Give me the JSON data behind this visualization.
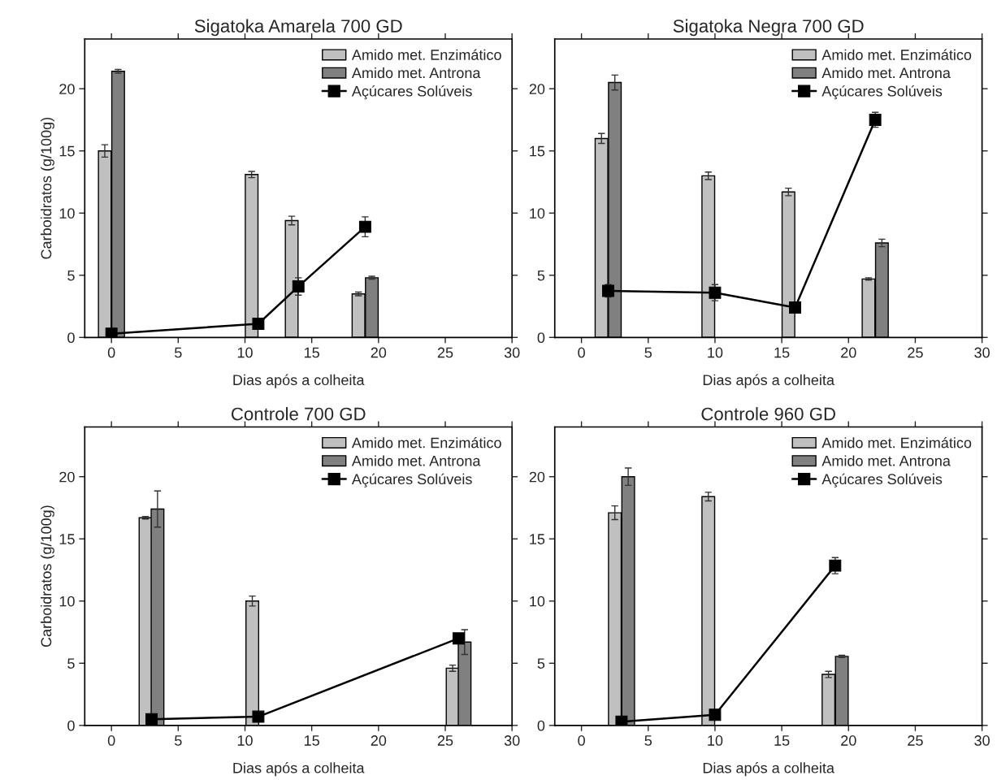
{
  "chart_data": [
    {
      "type": "bar",
      "title": "Sigatoka Amarela 700 GD",
      "xlabel": "Dias após a colheita",
      "ylabel": "Carboidratos (g/100g)",
      "xlim": [
        -2,
        30
      ],
      "ylim": [
        0,
        24
      ],
      "xticks": [
        0,
        5,
        10,
        15,
        20,
        25,
        30
      ],
      "yticks": [
        0,
        5,
        10,
        15,
        20
      ],
      "legend": "top right",
      "grid": false,
      "series": [
        {
          "name": "Amido met. Enzimático",
          "color": "#c0c0c0",
          "x": [
            -0.5,
            10.5,
            13.5,
            18.5
          ],
          "values": [
            15.0,
            13.1,
            9.4,
            3.5
          ],
          "errors": [
            0.5,
            0.25,
            0.35,
            0.15
          ]
        },
        {
          "name": "Amido met. Antrona",
          "color": "#808080",
          "x": [
            0.5,
            19.5
          ],
          "values": [
            21.4,
            4.8
          ],
          "errors": [
            0.15,
            0.12
          ]
        },
        {
          "name": "Açúcares Solúveis",
          "type": "line",
          "color": "#000000",
          "marker": "square",
          "x": [
            0,
            11,
            14,
            19
          ],
          "values": [
            0.3,
            1.1,
            4.1,
            8.9
          ],
          "errors": [
            null,
            null,
            0.7,
            0.8
          ]
        }
      ]
    },
    {
      "type": "bar",
      "title": "Sigatoka Negra 700 GD",
      "xlabel": "Dias após a colheita",
      "xlim": [
        -2,
        30
      ],
      "ylim": [
        0,
        24
      ],
      "xticks": [
        0,
        5,
        10,
        15,
        20,
        25,
        30
      ],
      "yticks": [
        0,
        5,
        10,
        15,
        20
      ],
      "legend": "top right",
      "grid": false,
      "series": [
        {
          "name": "Amido met. Enzimático",
          "color": "#c0c0c0",
          "x": [
            1.5,
            9.5,
            15.5,
            21.5
          ],
          "values": [
            16.0,
            13.0,
            11.7,
            4.7
          ],
          "errors": [
            0.4,
            0.3,
            0.3,
            0.1
          ]
        },
        {
          "name": "Amido met. Antrona",
          "color": "#808080",
          "x": [
            2.5,
            22.5
          ],
          "values": [
            20.5,
            7.6
          ],
          "errors": [
            0.6,
            0.3
          ]
        },
        {
          "name": "Açúcares Solúveis",
          "type": "line",
          "color": "#000000",
          "marker": "square",
          "x": [
            2,
            10,
            16,
            22
          ],
          "values": [
            3.75,
            3.6,
            2.4,
            17.5
          ],
          "errors": [
            0.5,
            0.65,
            null,
            0.6
          ]
        }
      ]
    },
    {
      "type": "bar",
      "title": "Controle 700 GD",
      "xlabel": "Dias após a colheita",
      "ylabel": "Carboidratos (g/100g)",
      "xlim": [
        -2,
        30
      ],
      "ylim": [
        0,
        24
      ],
      "xticks": [
        0,
        5,
        10,
        15,
        20,
        25,
        30
      ],
      "yticks": [
        0,
        5,
        10,
        15,
        20
      ],
      "legend": "top right",
      "grid": false,
      "series": [
        {
          "name": "Amido met. Enzimático",
          "color": "#c0c0c0",
          "x": [
            2.55,
            10.55,
            25.55
          ],
          "values": [
            16.7,
            10.0,
            4.6
          ],
          "errors": [
            0.1,
            0.4,
            0.25
          ]
        },
        {
          "name": "Amido met. Antrona",
          "color": "#808080",
          "x": [
            3.45,
            26.45
          ],
          "values": [
            17.4,
            6.7
          ],
          "errors": [
            1.45,
            1.0
          ]
        },
        {
          "name": "Açúcares Solúveis",
          "type": "line",
          "color": "#000000",
          "marker": "square",
          "x": [
            3,
            11,
            26
          ],
          "values": [
            0.5,
            0.7,
            7.0
          ],
          "errors": [
            null,
            null,
            0.35
          ]
        }
      ]
    },
    {
      "type": "bar",
      "title": "Controle 960 GD",
      "xlabel": "Dias após a colheita",
      "xlim": [
        -2,
        30
      ],
      "ylim": [
        0,
        24
      ],
      "xticks": [
        0,
        5,
        10,
        15,
        20,
        25,
        30
      ],
      "yticks": [
        0,
        5,
        10,
        15,
        20
      ],
      "legend": "top right",
      "grid": false,
      "series": [
        {
          "name": "Amido met. Enzimático",
          "color": "#c0c0c0",
          "x": [
            2.5,
            9.5,
            18.5
          ],
          "values": [
            17.1,
            18.4,
            4.1
          ],
          "errors": [
            0.55,
            0.35,
            0.25
          ]
        },
        {
          "name": "Amido met. Antrona",
          "color": "#808080",
          "x": [
            3.5,
            19.5
          ],
          "values": [
            20.0,
            5.55
          ],
          "errors": [
            0.7,
            0.1
          ]
        },
        {
          "name": "Açúcares Solúveis",
          "type": "line",
          "color": "#000000",
          "marker": "square",
          "x": [
            3,
            10,
            19
          ],
          "values": [
            0.3,
            0.85,
            12.85
          ],
          "errors": [
            null,
            null,
            0.65
          ]
        }
      ]
    }
  ]
}
